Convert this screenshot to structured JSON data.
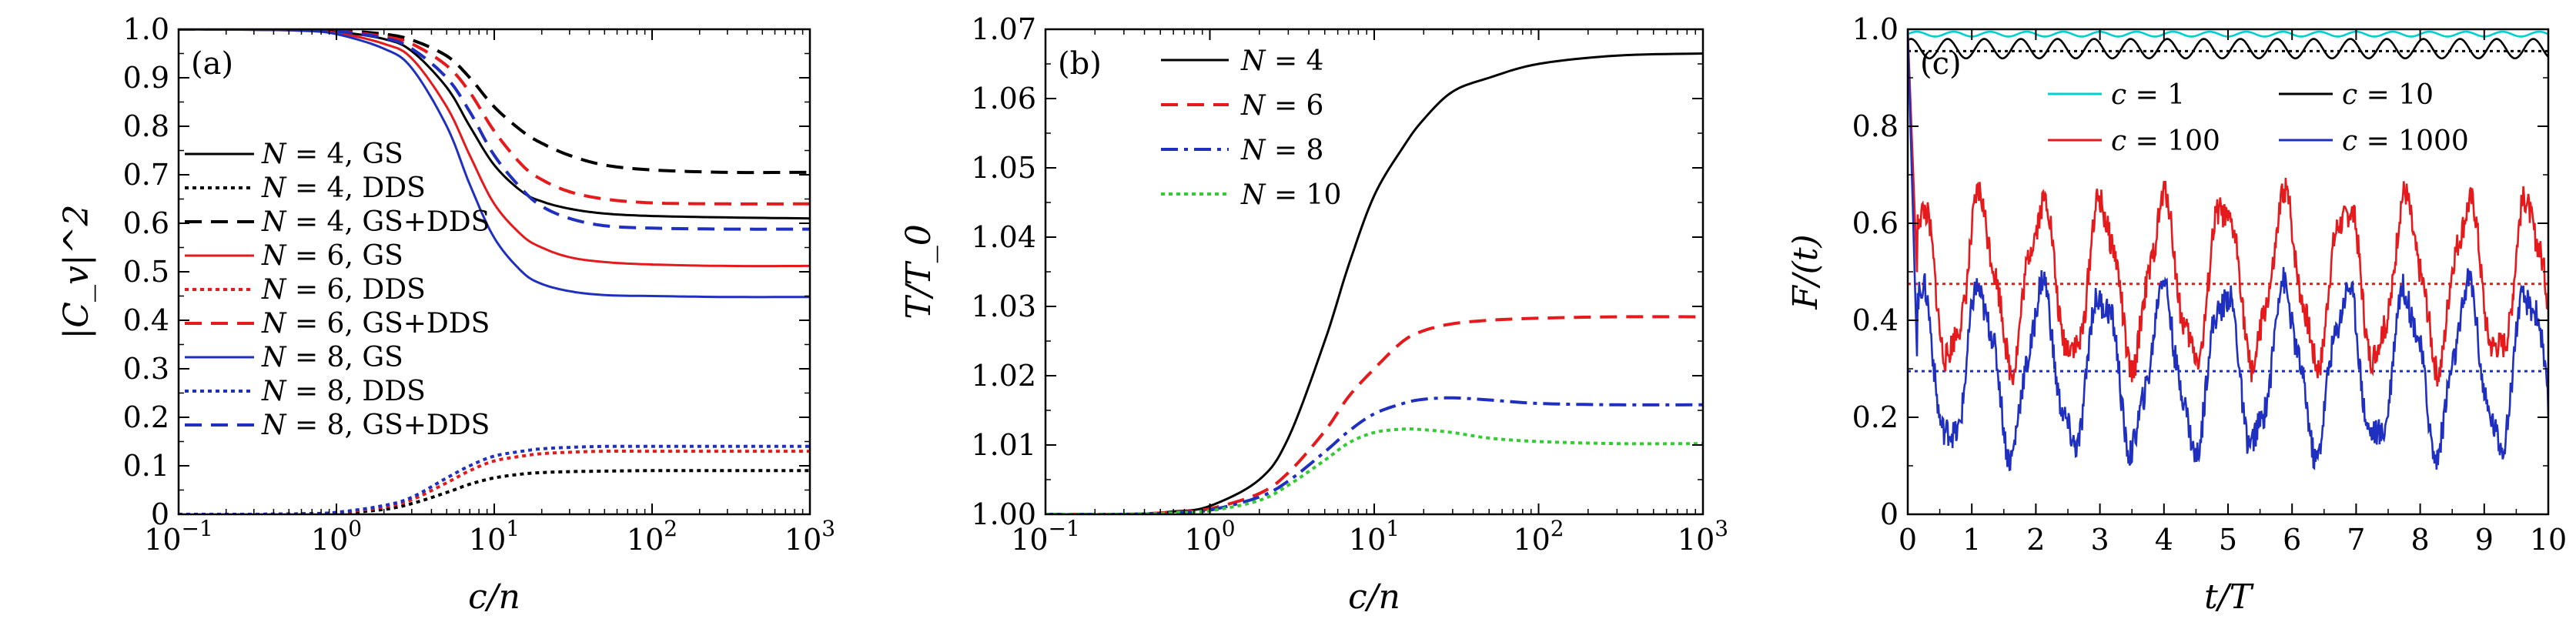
{
  "chart_data": [
    {
      "type": "line",
      "panel_label": "(a)",
      "xlabel": "c/n",
      "ylabel": "|C_v|^2",
      "xscale": "log",
      "xlim": [
        0.1,
        1000
      ],
      "ylim": [
        0,
        1.0
      ],
      "x_ticks": [
        {
          "value": 0.1,
          "base": "10",
          "exp": "−1"
        },
        {
          "value": 1,
          "base": "10",
          "exp": "0"
        },
        {
          "value": 10,
          "base": "10",
          "exp": "1"
        },
        {
          "value": 100,
          "base": "10",
          "exp": "2"
        },
        {
          "value": 1000,
          "base": "10",
          "exp": "3"
        }
      ],
      "y_ticks": [
        "0",
        "0.1",
        "0.2",
        "0.3",
        "0.4",
        "0.5",
        "0.6",
        "0.7",
        "0.8",
        "0.9",
        "1.0"
      ],
      "legend_position": "center-left",
      "series": [
        {
          "name": "N = 4, GS",
          "color": "#000000",
          "dash": "solid",
          "x": [
            0.1,
            0.3,
            0.6,
            1,
            2,
            3,
            5,
            7,
            10,
            15,
            20,
            30,
            50,
            100,
            300,
            1000
          ],
          "y": [
            1.0,
            0.999,
            0.998,
            0.995,
            0.98,
            0.955,
            0.88,
            0.8,
            0.72,
            0.665,
            0.645,
            0.63,
            0.62,
            0.615,
            0.612,
            0.61
          ]
        },
        {
          "name": "N = 4, DDS",
          "color": "#000000",
          "dash": "dotted",
          "x": [
            0.1,
            0.3,
            0.6,
            1,
            2,
            3,
            5,
            7,
            10,
            15,
            20,
            30,
            50,
            100,
            300,
            1000
          ],
          "y": [
            0,
            0,
            0.001,
            0.002,
            0.01,
            0.022,
            0.045,
            0.062,
            0.075,
            0.083,
            0.086,
            0.088,
            0.089,
            0.09,
            0.09,
            0.09
          ]
        },
        {
          "name": "N = 4, GS+DDS",
          "color": "#000000",
          "dash": "dashed",
          "x": [
            0.1,
            0.3,
            0.6,
            1,
            2,
            3,
            5,
            7,
            10,
            15,
            20,
            30,
            50,
            100,
            300,
            1000
          ],
          "y": [
            1.0,
            1.0,
            0.999,
            0.998,
            0.99,
            0.978,
            0.945,
            0.9,
            0.84,
            0.79,
            0.765,
            0.74,
            0.72,
            0.71,
            0.705,
            0.705
          ]
        },
        {
          "name": "N = 6, GS",
          "color": "#e41a1c",
          "dash": "solid",
          "x": [
            0.1,
            0.3,
            0.6,
            1,
            2,
            3,
            5,
            7,
            10,
            15,
            20,
            30,
            50,
            100,
            300,
            1000
          ],
          "y": [
            1.0,
            0.999,
            0.997,
            0.993,
            0.97,
            0.94,
            0.84,
            0.74,
            0.64,
            0.575,
            0.55,
            0.53,
            0.52,
            0.515,
            0.512,
            0.512
          ]
        },
        {
          "name": "N = 6, DDS",
          "color": "#e41a1c",
          "dash": "dotted",
          "x": [
            0.1,
            0.3,
            0.6,
            1,
            2,
            3,
            5,
            7,
            10,
            15,
            20,
            30,
            50,
            100,
            300,
            1000
          ],
          "y": [
            0,
            0,
            0.001,
            0.003,
            0.015,
            0.03,
            0.065,
            0.09,
            0.11,
            0.12,
            0.125,
            0.128,
            0.13,
            0.13,
            0.13,
            0.13
          ]
        },
        {
          "name": "N = 6, GS+DDS",
          "color": "#e41a1c",
          "dash": "dashed",
          "x": [
            0.1,
            0.3,
            0.6,
            1,
            2,
            3,
            5,
            7,
            10,
            15,
            20,
            30,
            50,
            100,
            300,
            1000
          ],
          "y": [
            1.0,
            1.0,
            0.999,
            0.997,
            0.985,
            0.97,
            0.925,
            0.87,
            0.79,
            0.72,
            0.69,
            0.665,
            0.65,
            0.642,
            0.64,
            0.64
          ]
        },
        {
          "name": "N = 8, GS",
          "color": "#1f2fbf",
          "dash": "solid",
          "x": [
            0.1,
            0.3,
            0.6,
            1,
            2,
            3,
            5,
            7,
            10,
            15,
            20,
            30,
            50,
            100,
            300,
            1000
          ],
          "y": [
            1.0,
            0.999,
            0.997,
            0.99,
            0.96,
            0.92,
            0.8,
            0.68,
            0.57,
            0.5,
            0.475,
            0.46,
            0.452,
            0.45,
            0.448,
            0.448
          ]
        },
        {
          "name": "N = 8, DDS",
          "color": "#1f2fbf",
          "dash": "dotted",
          "x": [
            0.1,
            0.3,
            0.6,
            1,
            2,
            3,
            5,
            7,
            10,
            15,
            20,
            30,
            50,
            100,
            300,
            1000
          ],
          "y": [
            0,
            0,
            0.001,
            0.004,
            0.018,
            0.035,
            0.075,
            0.1,
            0.12,
            0.13,
            0.135,
            0.138,
            0.14,
            0.14,
            0.14,
            0.14
          ]
        },
        {
          "name": "N = 8, GS+DDS",
          "color": "#1f2fbf",
          "dash": "dashed",
          "x": [
            0.1,
            0.3,
            0.6,
            1,
            2,
            3,
            5,
            7,
            10,
            15,
            20,
            30,
            50,
            100,
            300,
            1000
          ],
          "y": [
            1.0,
            1.0,
            0.999,
            0.996,
            0.982,
            0.96,
            0.9,
            0.83,
            0.74,
            0.67,
            0.635,
            0.61,
            0.595,
            0.59,
            0.588,
            0.588
          ]
        }
      ]
    },
    {
      "type": "line",
      "panel_label": "(b)",
      "xlabel": "c/n",
      "ylabel": "T/T_0",
      "xscale": "log",
      "xlim": [
        0.1,
        1000
      ],
      "ylim": [
        1.0,
        1.07
      ],
      "x_ticks": [
        {
          "value": 0.1,
          "base": "10",
          "exp": "−1"
        },
        {
          "value": 1,
          "base": "10",
          "exp": "0"
        },
        {
          "value": 10,
          "base": "10",
          "exp": "1"
        },
        {
          "value": 100,
          "base": "10",
          "exp": "2"
        },
        {
          "value": 1000,
          "base": "10",
          "exp": "3"
        }
      ],
      "y_ticks": [
        "1.00",
        "1.01",
        "1.02",
        "1.03",
        "1.04",
        "1.05",
        "1.06",
        "1.07"
      ],
      "legend_position": "top-left",
      "series": [
        {
          "name": "N = 4",
          "color": "#000000",
          "dash": "solid",
          "x": [
            0.1,
            0.3,
            0.6,
            1,
            2,
            3,
            5,
            7,
            10,
            15,
            20,
            30,
            50,
            100,
            300,
            1000
          ],
          "y": [
            1.0,
            1.0,
            1.0004,
            1.0012,
            1.005,
            1.011,
            1.025,
            1.036,
            1.046,
            1.053,
            1.057,
            1.061,
            1.063,
            1.065,
            1.0662,
            1.0665
          ]
        },
        {
          "name": "N = 6",
          "color": "#e41a1c",
          "dash": "dashed",
          "x": [
            0.1,
            0.3,
            0.6,
            1,
            2,
            3,
            5,
            7,
            10,
            15,
            20,
            30,
            50,
            100,
            300,
            1000
          ],
          "y": [
            1.0,
            1.0,
            1.0003,
            1.0008,
            1.003,
            1.006,
            1.012,
            1.017,
            1.021,
            1.025,
            1.0265,
            1.0275,
            1.028,
            1.0283,
            1.0285,
            1.0285
          ]
        },
        {
          "name": "N = 8",
          "color": "#1f2fbf",
          "dash": "dashdot",
          "x": [
            0.1,
            0.3,
            0.6,
            1,
            2,
            3,
            5,
            7,
            10,
            15,
            20,
            30,
            50,
            100,
            300,
            1000
          ],
          "y": [
            1.0,
            1.0,
            1.0002,
            1.0006,
            1.0025,
            1.0048,
            1.009,
            1.012,
            1.0145,
            1.016,
            1.0166,
            1.0168,
            1.0165,
            1.016,
            1.0158,
            1.0158
          ]
        },
        {
          "name": "N = 10",
          "color": "#33cc33",
          "dash": "dotted",
          "x": [
            0.1,
            0.3,
            0.6,
            1,
            2,
            3,
            5,
            7,
            10,
            15,
            20,
            30,
            50,
            100,
            300,
            1000
          ],
          "y": [
            1.0,
            1.0,
            1.0002,
            1.0005,
            1.002,
            1.0042,
            1.0078,
            1.0103,
            1.0118,
            1.0123,
            1.0122,
            1.0118,
            1.011,
            1.0105,
            1.0102,
            1.0102
          ]
        }
      ]
    },
    {
      "type": "line",
      "panel_label": "(c)",
      "xlabel": "t/T",
      "ylabel": "F/(t)",
      "xlim": [
        0,
        10
      ],
      "ylim": [
        0,
        1.0
      ],
      "x_ticks": [
        "0",
        "1",
        "2",
        "3",
        "4",
        "5",
        "6",
        "7",
        "8",
        "9",
        "10"
      ],
      "y_ticks": [
        "0",
        "0.2",
        "0.4",
        "0.6",
        "0.8",
        "1.0"
      ],
      "legend_position": "top-right",
      "series": [
        {
          "name": "c = 1",
          "color": "#00d0d0",
          "dash": "solid",
          "level": 0.99,
          "amplitude": 0.005
        },
        {
          "name": "c = 10",
          "color": "#000000",
          "dash": "solid",
          "level": 0.96,
          "amplitude": 0.02
        },
        {
          "name": "c = 100",
          "color": "#e41a1c",
          "dash": "solid",
          "level": 0.48,
          "amplitude": 0.16
        },
        {
          "name": "c = 1000",
          "color": "#1f2fbf",
          "dash": "solid",
          "level": 0.3,
          "amplitude": 0.16
        }
      ],
      "reference_lines": [
        {
          "y": 0.955,
          "color": "#000000",
          "dash": "dotted"
        },
        {
          "y": 0.475,
          "color": "#e41a1c",
          "dash": "dotted"
        },
        {
          "y": 0.295,
          "color": "#1f2fbf",
          "dash": "dotted"
        }
      ]
    }
  ]
}
